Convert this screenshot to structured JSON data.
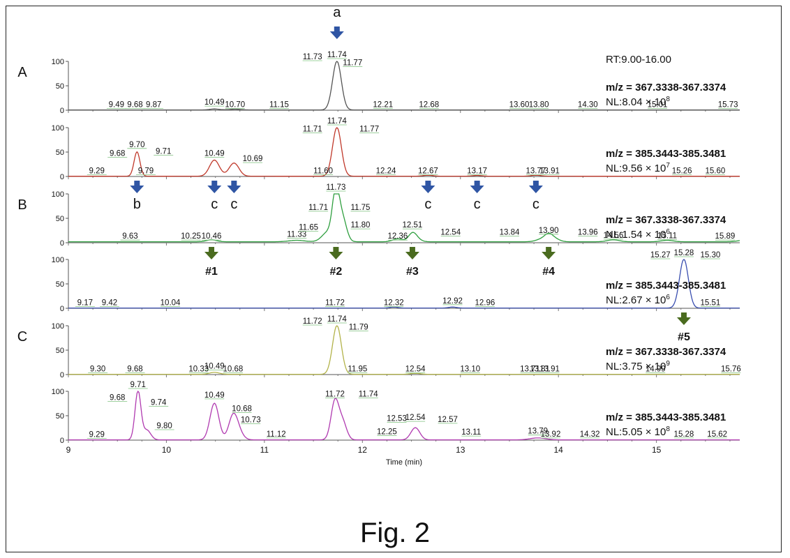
{
  "figure": {
    "caption": "Fig. 2",
    "section_labels": [
      "A",
      "B",
      "C"
    ],
    "rt_label": "RT:9.00-16.00",
    "x_axis_title": "Time (min)",
    "x_ticks": [
      "9",
      "10",
      "11",
      "12",
      "13",
      "14",
      "15"
    ],
    "y_ticks": [
      "0",
      "50",
      "100"
    ]
  },
  "chart_data": {
    "type": "line",
    "xlabel": "Time (min)",
    "xlim": [
      9.0,
      15.85
    ],
    "ylim": [
      0,
      100
    ],
    "panels": [
      {
        "section": "A",
        "mz": "m/z = 367.3338-367.3374",
        "nl_prefix": "NL:",
        "nl_mant": "8.04",
        "nl_exp": "8",
        "color": "#555555",
        "baseline": 0.5,
        "peaks": [
          [
            10.49,
            2,
            0.05
          ],
          [
            10.7,
            1.5,
            0.06
          ],
          [
            11.74,
            100,
            0.045
          ]
        ],
        "labels": [
          {
            "x": 9.49,
            "y": 2,
            "text": "9.49"
          },
          {
            "x": 9.68,
            "y": 2,
            "text": "9.68"
          },
          {
            "x": 9.87,
            "y": 2,
            "text": "9.87"
          },
          {
            "x": 10.49,
            "y": 7,
            "text": "10.49"
          },
          {
            "x": 10.7,
            "y": 2,
            "text": "10.70"
          },
          {
            "x": 11.15,
            "y": 2,
            "text": "11.15"
          },
          {
            "x": 11.49,
            "y": 100,
            "text": "11.73"
          },
          {
            "x": 11.74,
            "y": 118,
            "text": "11.74"
          },
          {
            "x": 11.9,
            "y": 88,
            "text": "11.77"
          },
          {
            "x": 12.21,
            "y": 2,
            "text": "12.21"
          },
          {
            "x": 12.68,
            "y": 2,
            "text": "12.68"
          },
          {
            "x": 13.6,
            "y": 2,
            "text": "13.60"
          },
          {
            "x": 13.8,
            "y": 2,
            "text": "13.80"
          },
          {
            "x": 14.3,
            "y": 2,
            "text": "14.30"
          },
          {
            "x": 15.01,
            "y": 2,
            "text": "15.01"
          },
          {
            "x": 15.73,
            "y": 2,
            "text": "15.73"
          }
        ]
      },
      {
        "section": "",
        "mz": "m/z = 385.3443-385.3481",
        "nl_prefix": "NL:",
        "nl_mant": "9.56",
        "nl_exp": "7",
        "color": "#c0392b",
        "baseline": 0.5,
        "peaks": [
          [
            9.7,
            50,
            0.03
          ],
          [
            10.49,
            33,
            0.05
          ],
          [
            10.69,
            27,
            0.05
          ],
          [
            11.74,
            100,
            0.045
          ],
          [
            12.67,
            2,
            0.05
          ],
          [
            13.17,
            1.5,
            0.05
          ],
          [
            13.77,
            2,
            0.05
          ]
        ],
        "labels": [
          {
            "x": 9.29,
            "y": 2,
            "text": "9.29"
          },
          {
            "x": 9.5,
            "y": 38,
            "text": "9.68"
          },
          {
            "x": 9.7,
            "y": 56,
            "text": "9.70"
          },
          {
            "x": 9.97,
            "y": 42,
            "text": "9.71"
          },
          {
            "x": 9.79,
            "y": 2,
            "text": "9.79"
          },
          {
            "x": 10.49,
            "y": 38,
            "text": "10.49"
          },
          {
            "x": 10.88,
            "y": 27,
            "text": "10.69"
          },
          {
            "x": 11.6,
            "y": 2,
            "text": "11.60"
          },
          {
            "x": 11.49,
            "y": 88,
            "text": "11.71"
          },
          {
            "x": 11.74,
            "y": 110,
            "text": "11.74"
          },
          {
            "x": 12.07,
            "y": 88,
            "text": "11.77"
          },
          {
            "x": 12.24,
            "y": 2,
            "text": "12.24"
          },
          {
            "x": 12.67,
            "y": 2,
            "text": "12.67"
          },
          {
            "x": 13.17,
            "y": 2,
            "text": "13.17"
          },
          {
            "x": 13.77,
            "y": 2,
            "text": "13.77"
          },
          {
            "x": 13.91,
            "y": 2,
            "text": "13.91"
          },
          {
            "x": 15.26,
            "y": 2,
            "text": "15.26"
          },
          {
            "x": 15.6,
            "y": 2,
            "text": "15.60"
          }
        ]
      },
      {
        "section": "B",
        "mz": "m/z = 367.3338-367.3374",
        "nl_prefix": "NL:",
        "nl_mant": "1.54",
        "nl_exp": "6",
        "color": "#2e9e3e",
        "baseline": 2,
        "peaks": [
          [
            10.46,
            4,
            0.05
          ],
          [
            11.33,
            3,
            0.08
          ],
          [
            11.65,
            20,
            0.06
          ],
          [
            11.73,
            100,
            0.035
          ],
          [
            11.8,
            45,
            0.04
          ],
          [
            12.36,
            6,
            0.05
          ],
          [
            12.51,
            14,
            0.04
          ],
          [
            12.54,
            6,
            0.05
          ],
          [
            13.84,
            6,
            0.06
          ],
          [
            13.9,
            11,
            0.04
          ],
          [
            13.96,
            6,
            0.05
          ],
          [
            14.56,
            4,
            0.06
          ],
          [
            15.11,
            3,
            0.06
          ],
          [
            15.89,
            3,
            0.06
          ]
        ],
        "labels": [
          {
            "x": 9.63,
            "y": 4,
            "text": "9.63"
          },
          {
            "x": 10.25,
            "y": 4,
            "text": "10.25"
          },
          {
            "x": 10.46,
            "y": 4,
            "text": "10.46"
          },
          {
            "x": 11.33,
            "y": 8,
            "text": "11.33"
          },
          {
            "x": 11.45,
            "y": 22,
            "text": "11.65"
          },
          {
            "x": 11.55,
            "y": 63,
            "text": "11.71"
          },
          {
            "x": 11.73,
            "y": 108,
            "text": "11.73"
          },
          {
            "x": 11.98,
            "y": 63,
            "text": "11.75"
          },
          {
            "x": 11.98,
            "y": 27,
            "text": "11.80"
          },
          {
            "x": 12.36,
            "y": 4,
            "text": "12.36"
          },
          {
            "x": 12.51,
            "y": 27,
            "text": "12.51"
          },
          {
            "x": 12.9,
            "y": 12,
            "text": "12.54"
          },
          {
            "x": 13.5,
            "y": 12,
            "text": "13.84"
          },
          {
            "x": 13.9,
            "y": 16,
            "text": "13.90"
          },
          {
            "x": 14.3,
            "y": 12,
            "text": "13.96"
          },
          {
            "x": 14.56,
            "y": 6,
            "text": "14.56"
          },
          {
            "x": 15.11,
            "y": 5,
            "text": "15.11"
          },
          {
            "x": 15.7,
            "y": 4,
            "text": "15.89"
          }
        ]
      },
      {
        "section": "",
        "mz": "m/z = 385.3443-385.3481",
        "nl_prefix": "NL:",
        "nl_mant": "2.67",
        "nl_exp": "6",
        "color": "#3a4fb0",
        "baseline": 0.5,
        "peaks": [
          [
            12.32,
            2,
            0.04
          ],
          [
            12.92,
            2,
            0.04
          ],
          [
            15.28,
            100,
            0.045
          ]
        ],
        "labels": [
          {
            "x": 9.17,
            "y": 2,
            "text": "9.17"
          },
          {
            "x": 9.42,
            "y": 2,
            "text": "9.42"
          },
          {
            "x": 10.04,
            "y": 2,
            "text": "10.04"
          },
          {
            "x": 11.72,
            "y": 2,
            "text": "11.72"
          },
          {
            "x": 12.32,
            "y": 2,
            "text": "12.32"
          },
          {
            "x": 12.92,
            "y": 6,
            "text": "12.92"
          },
          {
            "x": 13.25,
            "y": 2,
            "text": "12.96"
          },
          {
            "x": 15.04,
            "y": 100,
            "text": "15.27"
          },
          {
            "x": 15.28,
            "y": 108,
            "text": "15.28"
          },
          {
            "x": 15.55,
            "y": 100,
            "text": "15.30"
          },
          {
            "x": 15.55,
            "y": 2,
            "text": "15.51"
          }
        ]
      },
      {
        "section": "C",
        "mz": "m/z = 367.3338-367.3374",
        "nl_prefix": "NL:",
        "nl_mant": "3.75",
        "nl_exp": "9",
        "color": "#b3b34a",
        "baseline": 0.5,
        "peaks": [
          [
            10.49,
            4,
            0.05
          ],
          [
            11.74,
            100,
            0.045
          ],
          [
            12.54,
            2,
            0.05
          ]
        ],
        "labels": [
          {
            "x": 9.3,
            "y": 2,
            "text": "9.30"
          },
          {
            "x": 9.68,
            "y": 2,
            "text": "9.68"
          },
          {
            "x": 10.33,
            "y": 2,
            "text": "10.33"
          },
          {
            "x": 10.49,
            "y": 8,
            "text": "10.49"
          },
          {
            "x": 10.68,
            "y": 2,
            "text": "10.68"
          },
          {
            "x": 11.49,
            "y": 100,
            "text": "11.72"
          },
          {
            "x": 11.74,
            "y": 108,
            "text": "11.74"
          },
          {
            "x": 11.96,
            "y": 88,
            "text": "11.79"
          },
          {
            "x": 11.95,
            "y": 2,
            "text": "11.95"
          },
          {
            "x": 12.54,
            "y": 2,
            "text": "12.54"
          },
          {
            "x": 13.1,
            "y": 2,
            "text": "13.10"
          },
          {
            "x": 13.71,
            "y": 2,
            "text": "13.71"
          },
          {
            "x": 13.81,
            "y": 2,
            "text": "13.81"
          },
          {
            "x": 13.91,
            "y": 2,
            "text": "13.91"
          },
          {
            "x": 14.99,
            "y": 2,
            "text": "14.99"
          },
          {
            "x": 15.76,
            "y": 2,
            "text": "15.76"
          }
        ]
      },
      {
        "section": "",
        "mz": "m/z = 385.3443-385.3481",
        "nl_prefix": "NL:",
        "nl_mant": "5.05",
        "nl_exp": "8",
        "color": "#b03ab0",
        "baseline": 0.5,
        "peaks": [
          [
            9.71,
            100,
            0.03
          ],
          [
            9.8,
            20,
            0.04
          ],
          [
            10.49,
            75,
            0.045
          ],
          [
            10.68,
            45,
            0.045
          ],
          [
            10.73,
            15,
            0.05
          ],
          [
            11.72,
            80,
            0.04
          ],
          [
            11.8,
            35,
            0.04
          ],
          [
            12.54,
            25,
            0.045
          ],
          [
            13.79,
            4,
            0.08
          ]
        ],
        "labels": [
          {
            "x": 9.29,
            "y": 2,
            "text": "9.29"
          },
          {
            "x": 9.5,
            "y": 78,
            "text": "9.68"
          },
          {
            "x": 9.71,
            "y": 110,
            "text": "9.71"
          },
          {
            "x": 9.92,
            "y": 68,
            "text": "9.74"
          },
          {
            "x": 9.98,
            "y": 20,
            "text": "9.80"
          },
          {
            "x": 10.49,
            "y": 83,
            "text": "10.49"
          },
          {
            "x": 10.77,
            "y": 55,
            "text": "10.68"
          },
          {
            "x": 10.86,
            "y": 32,
            "text": "10.73"
          },
          {
            "x": 11.12,
            "y": 3,
            "text": "11.12"
          },
          {
            "x": 11.72,
            "y": 85,
            "text": "11.72"
          },
          {
            "x": 12.06,
            "y": 85,
            "text": "11.74"
          },
          {
            "x": 12.35,
            "y": 35,
            "text": "12.53"
          },
          {
            "x": 12.25,
            "y": 8,
            "text": "12.25"
          },
          {
            "x": 12.54,
            "y": 37,
            "text": "12.54"
          },
          {
            "x": 12.87,
            "y": 33,
            "text": "12.57"
          },
          {
            "x": 13.11,
            "y": 7,
            "text": "13.11"
          },
          {
            "x": 13.79,
            "y": 9,
            "text": "13.79"
          },
          {
            "x": 13.92,
            "y": 3,
            "text": "13.92"
          },
          {
            "x": 14.32,
            "y": 3,
            "text": "14.32"
          },
          {
            "x": 15.28,
            "y": 3,
            "text": "15.28"
          },
          {
            "x": 15.62,
            "y": 3,
            "text": "15.62"
          }
        ]
      }
    ],
    "markers": [
      {
        "label": "a",
        "x": 11.74,
        "panel": 0,
        "side": "above",
        "color": "#2f55a4"
      },
      {
        "label": "b",
        "x": 9.7,
        "panel": 1,
        "side": "below",
        "color": "#2f55a4"
      },
      {
        "label": "c",
        "x": 10.49,
        "panel": 1,
        "side": "below",
        "color": "#2f55a4"
      },
      {
        "label": "c",
        "x": 10.69,
        "panel": 1,
        "side": "below",
        "color": "#2f55a4"
      },
      {
        "label": "c",
        "x": 12.67,
        "panel": 1,
        "side": "below",
        "color": "#2f55a4"
      },
      {
        "label": "c",
        "x": 13.17,
        "panel": 1,
        "side": "below",
        "color": "#2f55a4"
      },
      {
        "label": "c",
        "x": 13.77,
        "panel": 1,
        "side": "below",
        "color": "#2f55a4"
      },
      {
        "label": "#1",
        "x": 10.46,
        "panel": 2,
        "side": "below",
        "color": "#4a6b1f"
      },
      {
        "label": "#2",
        "x": 11.73,
        "panel": 2,
        "side": "below",
        "color": "#4a6b1f"
      },
      {
        "label": "#3",
        "x": 12.51,
        "panel": 2,
        "side": "below",
        "color": "#4a6b1f"
      },
      {
        "label": "#4",
        "x": 13.9,
        "panel": 2,
        "side": "below",
        "color": "#4a6b1f"
      },
      {
        "label": "#5",
        "x": 15.28,
        "panel": 3,
        "side": "below",
        "color": "#4a6b1f"
      }
    ]
  }
}
